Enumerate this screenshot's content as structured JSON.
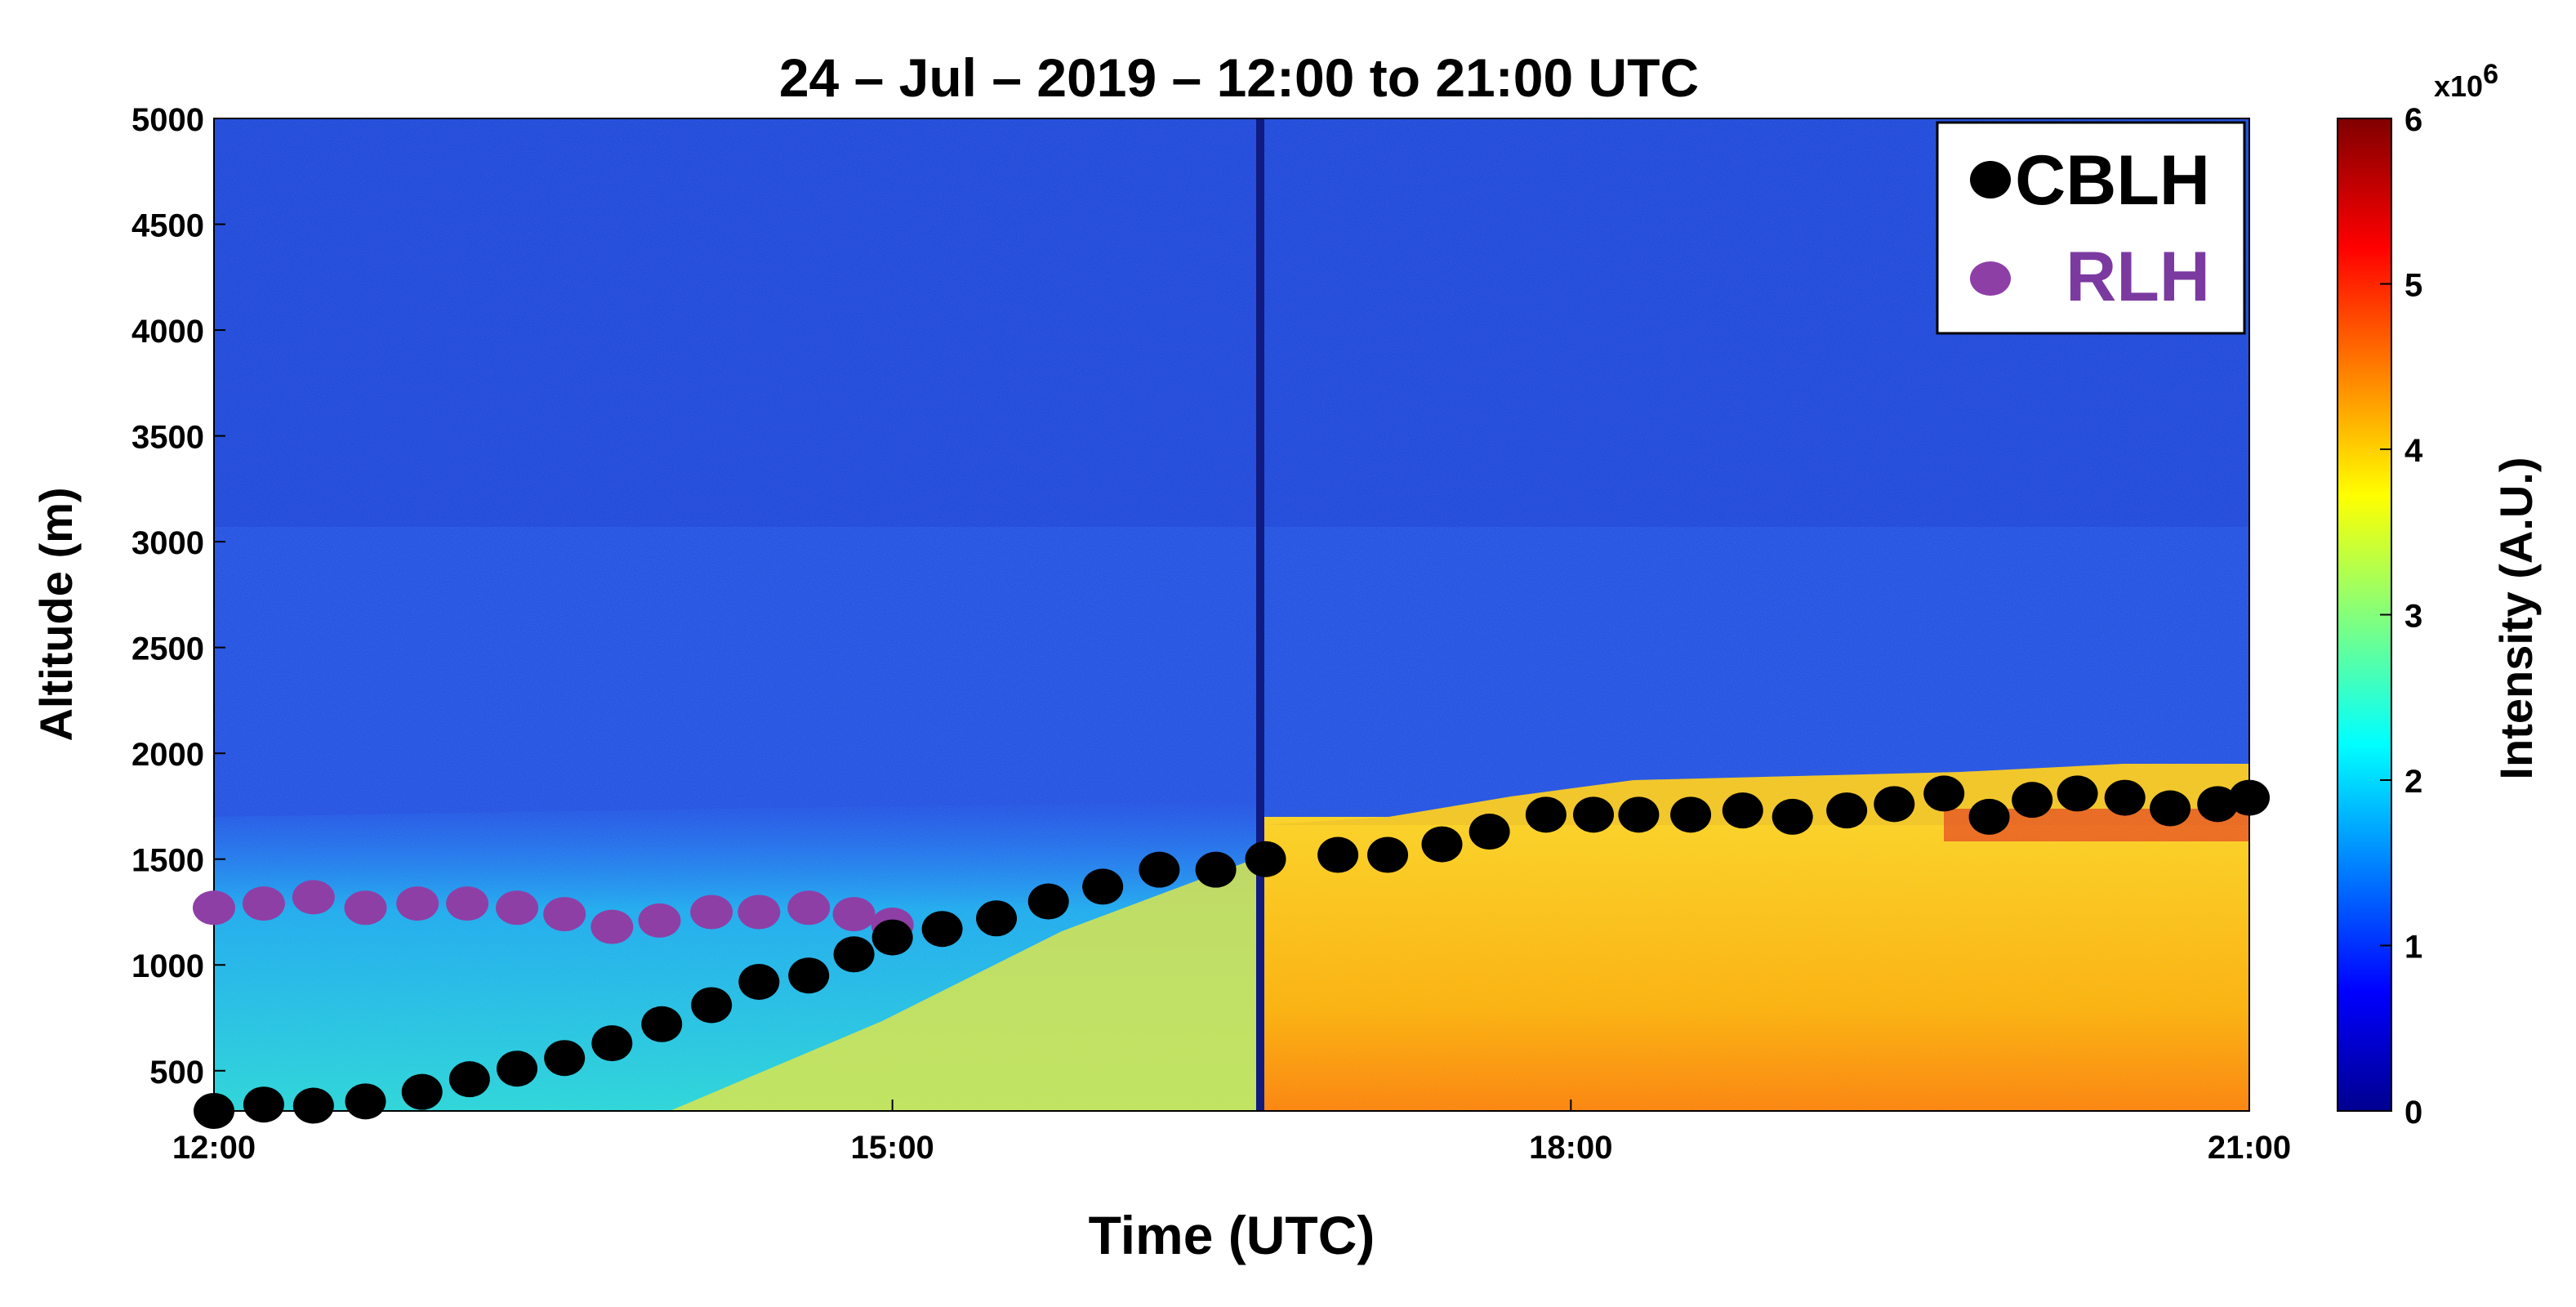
{
  "chart_data": {
    "type": "heatmap",
    "title": "24 – Jul – 2019 – 12:00 to 21:00 UTC",
    "xlabel": "Time (UTC)",
    "ylabel": "Altitude (m)",
    "x_ticks": [
      {
        "t": 12.0,
        "label": "12:00"
      },
      {
        "t": 15.0,
        "label": "15:00"
      },
      {
        "t": 18.0,
        "label": "18:00"
      },
      {
        "t": 21.0,
        "label": "21:00"
      }
    ],
    "y_ticks": [
      500,
      1000,
      1500,
      2000,
      2500,
      3000,
      3500,
      4000,
      4500,
      5000
    ],
    "xlim": [
      12.0,
      21.0
    ],
    "ylim": [
      310,
      5000
    ],
    "colorbar": {
      "label": "Intensity (A.U.)",
      "exponent_label": "x10",
      "exponent_power": "6",
      "range": [
        0,
        6
      ],
      "ticks": [
        0,
        1,
        2,
        3,
        4,
        5,
        6
      ],
      "colormap": "jet"
    },
    "legend": {
      "position": "top-right",
      "items": [
        {
          "label": "CBLH",
          "color": "#000000",
          "label_color": "#000000"
        },
        {
          "label": "RLH",
          "color": "#8e3fa6",
          "label_color": "#7b3aa0"
        }
      ]
    },
    "series": [
      {
        "name": "CBLH",
        "color": "#000000",
        "x": [
          12.0,
          12.22,
          12.44,
          12.67,
          12.92,
          13.13,
          13.34,
          13.55,
          13.76,
          13.98,
          14.2,
          14.41,
          14.63,
          14.83,
          15.0,
          15.22,
          15.46,
          15.69,
          15.93,
          16.18,
          16.43,
          16.65,
          16.97,
          17.19,
          17.43,
          17.64,
          17.89,
          18.1,
          18.3,
          18.53,
          18.76,
          18.98,
          19.22,
          19.43,
          19.65,
          19.85,
          20.04,
          20.24,
          20.45,
          20.65,
          20.86,
          21.0
        ],
        "y": [
          310,
          340,
          335,
          355,
          400,
          460,
          510,
          560,
          630,
          720,
          810,
          920,
          950,
          1050,
          1130,
          1170,
          1220,
          1300,
          1370,
          1450,
          1450,
          1500,
          1520,
          1520,
          1570,
          1630,
          1710,
          1710,
          1710,
          1710,
          1730,
          1700,
          1730,
          1760,
          1810,
          1700,
          1780,
          1810,
          1790,
          1740,
          1760,
          1790
        ]
      },
      {
        "name": "RLH",
        "color": "#8e3fa6",
        "x": [
          12.0,
          12.22,
          12.44,
          12.67,
          12.9,
          13.12,
          13.34,
          13.55,
          13.76,
          13.97,
          14.2,
          14.41,
          14.63,
          14.83,
          15.0
        ],
        "y": [
          1270,
          1290,
          1320,
          1270,
          1290,
          1290,
          1270,
          1240,
          1180,
          1210,
          1250,
          1250,
          1270,
          1240,
          1190
        ]
      }
    ]
  }
}
